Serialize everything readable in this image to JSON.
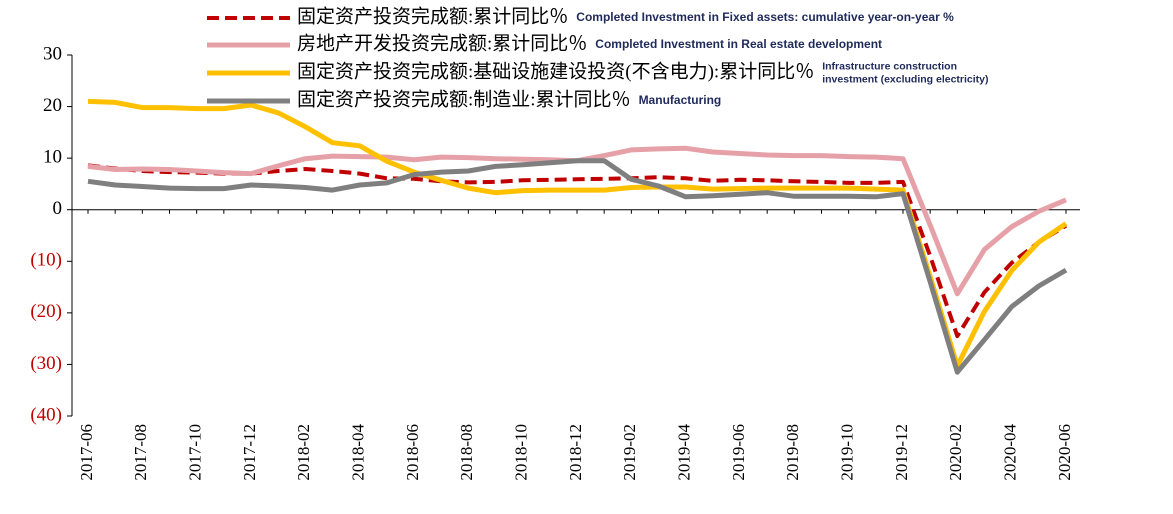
{
  "chart_data": {
    "type": "line",
    "categories": [
      "2017-06",
      null,
      "2017-08",
      null,
      "2017-10",
      null,
      "2017-12",
      null,
      "2018-02",
      null,
      "2018-04",
      null,
      "2018-06",
      null,
      "2018-08",
      null,
      "2018-10",
      null,
      "2018-12",
      null,
      "2019-02",
      null,
      "2019-04",
      null,
      "2019-06",
      null,
      "2019-08",
      null,
      "2019-10",
      null,
      "2019-12",
      null,
      "2020-02",
      null,
      "2020-04",
      null,
      "2020-06"
    ],
    "ylim": [
      -40,
      30
    ],
    "yticks": [
      30,
      20,
      10,
      0,
      {
        "value": -10,
        "label": "(10)"
      },
      {
        "value": -20,
        "label": "(20)"
      },
      {
        "value": -30,
        "label": "(30)"
      },
      {
        "value": -40,
        "label": "(40)"
      }
    ],
    "negative_tick_color": "#c00000",
    "series": [
      {
        "name": "固定资产投资完成额:累计同比％",
        "label_en": [
          "Completed Investment in Fixed assets: cumulative year-on-year %"
        ],
        "color": "#c00000",
        "dashed": true,
        "values": [
          8.6,
          8.0,
          7.5,
          7.3,
          7.2,
          7.0,
          7.0,
          7.5,
          7.9,
          7.5,
          7.0,
          6.1,
          6.0,
          5.5,
          5.3,
          5.4,
          5.7,
          5.8,
          5.9,
          6.0,
          6.1,
          6.3,
          6.1,
          5.6,
          5.8,
          5.7,
          5.5,
          5.4,
          5.2,
          5.2,
          5.4,
          -9,
          -24.5,
          -16,
          -10.3,
          -6.3,
          -3.1
        ]
      },
      {
        "name": "房地产开发投资完成额:累计同比％",
        "label_en": [
          "Completed Investment in Real estate development"
        ],
        "color": "#e6a1a8",
        "dashed": false,
        "values": [
          8.4,
          7.8,
          7.9,
          7.8,
          7.5,
          7.2,
          7.0,
          8.5,
          9.9,
          10.4,
          10.3,
          10.2,
          9.7,
          10.2,
          10.1,
          9.9,
          9.8,
          9.7,
          9.5,
          10.5,
          11.6,
          11.8,
          11.9,
          11.2,
          10.9,
          10.6,
          10.5,
          10.5,
          10.3,
          10.2,
          9.9,
          -3,
          -16.3,
          -7.7,
          -3.3,
          -0.3,
          1.9
        ]
      },
      {
        "name": "固定资产投资完成额:基础设施建设投资(不含电力):累计同比％",
        "label_en": [
          "Infrastructure construction",
          "investment (excluding electricity)"
        ],
        "color": "#ffc000",
        "dashed": false,
        "values": [
          21.0,
          20.8,
          19.8,
          19.8,
          19.6,
          19.6,
          20.3,
          18.8,
          16.1,
          13.0,
          12.4,
          9.4,
          7.3,
          5.7,
          4.2,
          3.3,
          3.7,
          3.8,
          3.8,
          3.8,
          4.3,
          4.4,
          4.4,
          4.0,
          4.1,
          4.2,
          4.2,
          4.2,
          4.2,
          4.0,
          3.8,
          -13,
          -30.3,
          -19.7,
          -11.8,
          -6.3,
          -2.7
        ]
      },
      {
        "name": "固定资产投资完成额:制造业:累计同比％",
        "label_en": [
          "Manufacturing"
        ],
        "color": "#7f7f7f",
        "dashed": false,
        "values": [
          5.5,
          4.8,
          4.5,
          4.2,
          4.1,
          4.1,
          4.8,
          4.6,
          4.3,
          3.8,
          4.8,
          5.2,
          6.8,
          7.3,
          7.5,
          8.4,
          8.7,
          9.1,
          9.5,
          9.5,
          5.9,
          4.6,
          2.5,
          2.7,
          3.0,
          3.3,
          2.6,
          2.6,
          2.6,
          2.5,
          3.1,
          -14,
          -31.5,
          -25.2,
          -18.8,
          -14.8,
          -11.7
        ]
      }
    ]
  }
}
